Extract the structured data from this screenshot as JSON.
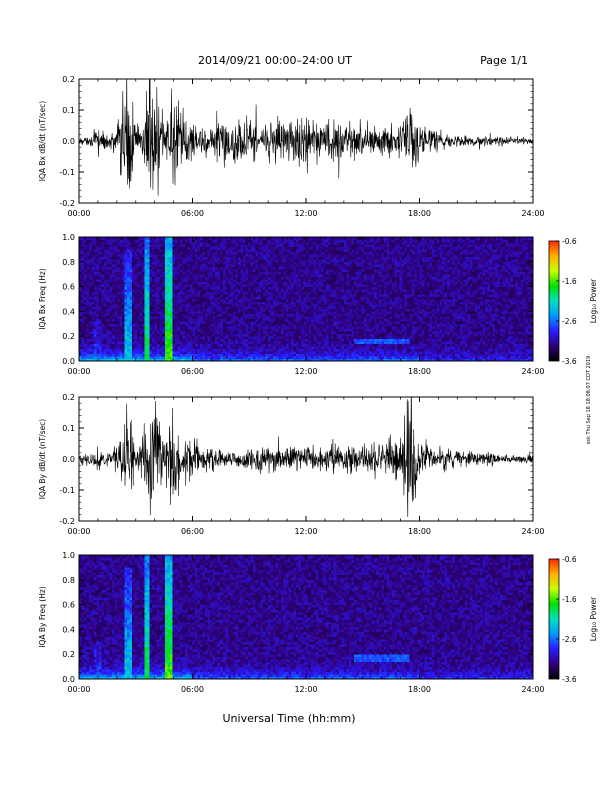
{
  "page": {
    "title": "2014/09/21  00:00–24:00 UT",
    "page_number": "Page 1/1",
    "xlabel": "Universal Time (hh:mm)",
    "side_stamp": "ssk Thu Sep 18 18:08:07 CDT 2019"
  },
  "colorbar": {
    "label": "Log₁₀ Power",
    "ticks": [
      "-0.6",
      "-1.6",
      "-2.6",
      "-3.6"
    ],
    "range": [
      -3.6,
      -0.6
    ],
    "colors": [
      "#000000",
      "#30007a",
      "#2a1cff",
      "#0096ff",
      "#00e0c0",
      "#00e000",
      "#c8ff00",
      "#ffb000",
      "#ff2a00"
    ]
  },
  "chart_data": [
    {
      "type": "line",
      "panel": "bx_dbdt",
      "ylabel": "IQA Bx dB/dt (nT/sec)",
      "x_ticks": [
        "00:00",
        "06:00",
        "12:00",
        "18:00",
        "24:00"
      ],
      "y_ticks": [
        "0.2",
        "0.1",
        "0.0",
        "-0.1",
        "-0.2"
      ],
      "xlim": [
        0,
        24
      ],
      "ylim": [
        -0.2,
        0.2
      ],
      "series": [
        {
          "x": [
            0,
            0.5,
            1,
            1.5,
            2,
            2.3,
            2.6,
            3,
            3.3,
            3.6,
            3.8,
            4,
            4.5,
            5,
            5.3,
            6,
            7,
            8,
            9,
            10,
            11,
            12,
            12.5,
            13,
            14,
            15,
            16,
            17,
            17.3,
            17.6,
            18,
            19,
            20,
            21,
            22,
            23,
            24
          ],
          "amplitude": [
            0.015,
            0.02,
            0.06,
            0.03,
            0.09,
            0.2,
            0.3,
            0.07,
            0.08,
            0.3,
            0.3,
            0.3,
            0.08,
            0.3,
            0.15,
            0.09,
            0.07,
            0.12,
            0.09,
            0.1,
            0.09,
            0.11,
            0.09,
            0.1,
            0.08,
            0.08,
            0.07,
            0.08,
            0.14,
            0.18,
            0.07,
            0.04,
            0.03,
            0.02,
            0.02,
            0.015,
            0.015
          ]
        }
      ]
    },
    {
      "type": "heatmap",
      "panel": "bx_spectrogram",
      "ylabel": "IQA Bx Freq (Hz)",
      "x_ticks": [
        "00:00",
        "06:00",
        "12:00",
        "18:00",
        "24:00"
      ],
      "y_ticks": [
        "1.0",
        "0.8",
        "0.6",
        "0.4",
        "0.2",
        "0.0"
      ],
      "xlim": [
        0,
        24
      ],
      "ylim": [
        0,
        1.0
      ],
      "z_range": [
        -3.6,
        -0.6
      ],
      "bursts": [
        {
          "t": 1.0,
          "fmax": 0.35,
          "level": -2.8
        },
        {
          "t": 2.6,
          "fmax": 0.9,
          "level": -2.2
        },
        {
          "t": 3.6,
          "fmax": 1.0,
          "level": -1.8
        },
        {
          "t": 4.7,
          "fmax": 1.0,
          "level": -1.6
        }
      ],
      "bands": [
        {
          "t_start": 14.5,
          "t_end": 17.5,
          "freq": 0.16,
          "level": -2.7
        }
      ]
    },
    {
      "type": "line",
      "panel": "by_dbdt",
      "ylabel": "IQA By dB/dt (nT/sec)",
      "x_ticks": [
        "00:00",
        "06:00",
        "12:00",
        "18:00",
        "24:00"
      ],
      "y_ticks": [
        "0.2",
        "0.1",
        "0.0",
        "-0.1",
        "-0.2"
      ],
      "xlim": [
        0,
        24
      ],
      "ylim": [
        -0.2,
        0.2
      ],
      "series": [
        {
          "x": [
            0,
            0.5,
            1,
            1.5,
            2,
            2.3,
            2.6,
            3,
            3.3,
            3.6,
            3.8,
            4,
            4.5,
            5,
            5.3,
            6,
            7,
            8,
            9,
            10,
            11,
            12,
            12.5,
            13,
            14,
            15,
            16,
            17,
            17.3,
            17.6,
            18,
            19,
            20,
            21,
            22,
            23,
            24
          ],
          "amplitude": [
            0.02,
            0.03,
            0.05,
            0.03,
            0.07,
            0.15,
            0.25,
            0.06,
            0.07,
            0.3,
            0.3,
            0.3,
            0.07,
            0.3,
            0.12,
            0.08,
            0.05,
            0.04,
            0.05,
            0.06,
            0.05,
            0.07,
            0.06,
            0.06,
            0.07,
            0.06,
            0.08,
            0.12,
            0.25,
            0.3,
            0.09,
            0.05,
            0.04,
            0.03,
            0.03,
            0.02,
            0.02
          ]
        }
      ]
    },
    {
      "type": "heatmap",
      "panel": "by_spectrogram",
      "ylabel": "IQA By Freq (Hz)",
      "x_ticks": [
        "00:00",
        "06:00",
        "12:00",
        "18:00",
        "24:00"
      ],
      "y_ticks": [
        "1.0",
        "0.8",
        "0.6",
        "0.4",
        "0.2",
        "0.0"
      ],
      "xlim": [
        0,
        24
      ],
      "ylim": [
        0,
        1.0
      ],
      "z_range": [
        -3.6,
        -0.6
      ],
      "bursts": [
        {
          "t": 1.0,
          "fmax": 0.3,
          "level": -2.8
        },
        {
          "t": 2.6,
          "fmax": 0.9,
          "level": -2.2
        },
        {
          "t": 3.6,
          "fmax": 1.0,
          "level": -1.8
        },
        {
          "t": 4.7,
          "fmax": 1.0,
          "level": -1.6
        }
      ],
      "bands": [
        {
          "t_start": 14.5,
          "t_end": 17.5,
          "freq": 0.17,
          "level": -2.7
        }
      ]
    }
  ]
}
